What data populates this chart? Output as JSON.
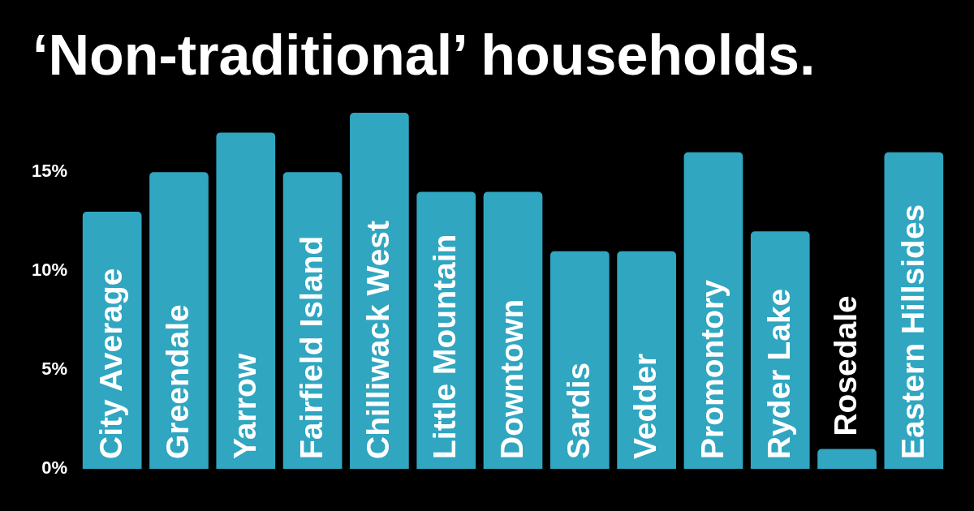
{
  "chart_data": {
    "type": "bar",
    "title": "‘Non-traditional’ households.",
    "categories": [
      "City Average",
      "Greendale",
      "Yarrow",
      "Fairfield Island",
      "Chilliwack West",
      "Little Mountain",
      "Downtown",
      "Sardis",
      "Vedder",
      "Promontory",
      "Ryder Lake",
      "Rosedale",
      "Eastern Hillsides"
    ],
    "values": [
      13,
      15,
      17,
      15,
      18,
      14,
      14,
      11,
      11,
      16,
      12,
      1,
      16
    ],
    "color": "#30a6c1",
    "ylim": [
      0,
      18
    ],
    "yticks": [
      {
        "value": 0,
        "label": "0%"
      },
      {
        "value": 5,
        "label": "5%"
      },
      {
        "value": 10,
        "label": "10%"
      },
      {
        "value": 15,
        "label": "15%"
      }
    ],
    "grid": false
  }
}
